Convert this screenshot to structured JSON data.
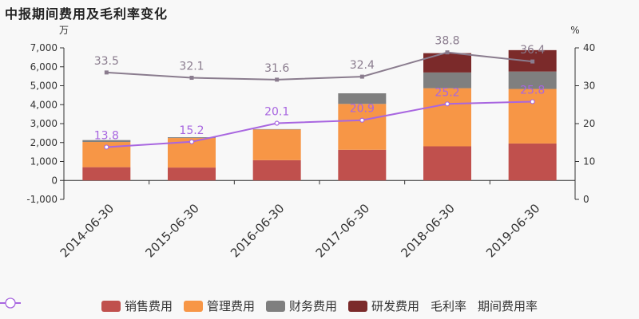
{
  "title": "中报期间费用及毛利率变化",
  "chart_data": {
    "type": "bar",
    "categories": [
      "2014-06-30",
      "2015-06-30",
      "2016-06-30",
      "2017-06-30",
      "2018-06-30",
      "2019-06-30"
    ],
    "left_axis": {
      "unit": "万",
      "ylim": [
        -1000,
        7000
      ],
      "ticks": [
        "-1,000",
        "0",
        "1,000",
        "2,000",
        "3,000",
        "4,000",
        "5,000",
        "6,000",
        "7,000"
      ]
    },
    "right_axis": {
      "unit": "%",
      "ylim": [
        0,
        40
      ],
      "ticks": [
        "0",
        "10",
        "20",
        "30",
        "40"
      ]
    },
    "bar_series": [
      {
        "name": "销售费用",
        "color": "#c0504d",
        "values": [
          700,
          680,
          1070,
          1620,
          1800,
          1950
        ]
      },
      {
        "name": "管理费用",
        "color": "#f79646",
        "values": [
          1330,
          1560,
          1620,
          2420,
          3070,
          2880
        ]
      },
      {
        "name": "财务费用",
        "color": "#7f7f7f",
        "values": [
          100,
          40,
          20,
          560,
          830,
          920
        ]
      },
      {
        "name": "研发费用",
        "color": "#7b2a2a",
        "values": [
          0,
          0,
          0,
          0,
          1020,
          1130
        ]
      }
    ],
    "line_series": [
      {
        "name": "毛利率",
        "color": "#8a7c8e",
        "values": [
          33.5,
          32.1,
          31.6,
          32.4,
          38.8,
          36.4
        ],
        "labels": [
          "33.5",
          "32.1",
          "31.6",
          "32.4",
          "38.8",
          "36.4"
        ]
      },
      {
        "name": "期间费用率",
        "color": "#a866e0",
        "values": [
          13.8,
          15.2,
          20.1,
          20.9,
          25.2,
          25.8
        ],
        "labels": [
          "13.8",
          "15.2",
          "20.1",
          "20.9",
          "25.2",
          "25.8"
        ]
      }
    ],
    "legend_position": "bottom",
    "grid": false
  }
}
